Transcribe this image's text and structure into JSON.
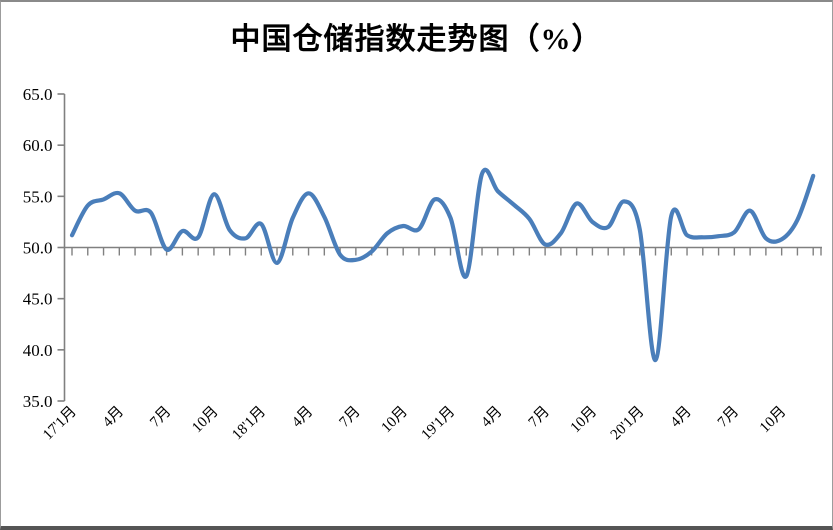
{
  "title": "中国仓储指数走势图（%）",
  "chart_data": {
    "type": "line",
    "title": "中国仓储指数走势图（%）",
    "categories": [
      "2017-01",
      "2017-02",
      "2017-03",
      "2017-04",
      "2017-05",
      "2017-06",
      "2017-07",
      "2017-08",
      "2017-09",
      "2017-10",
      "2017-11",
      "2017-12",
      "2018-01",
      "2018-02",
      "2018-03",
      "2018-04",
      "2018-05",
      "2018-06",
      "2018-07",
      "2018-08",
      "2018-09",
      "2018-10",
      "2018-11",
      "2018-12",
      "2019-01",
      "2019-02",
      "2019-03",
      "2019-04",
      "2019-05",
      "2019-06",
      "2019-07",
      "2019-08",
      "2019-09",
      "2019-10",
      "2019-11",
      "2019-12",
      "2020-01",
      "2020-02",
      "2020-03",
      "2020-04",
      "2020-05",
      "2020-06",
      "2020-07",
      "2020-08",
      "2020-09",
      "2020-10",
      "2020-11",
      "2020-12"
    ],
    "values": [
      51.2,
      54.1,
      54.7,
      55.3,
      53.6,
      53.4,
      49.8,
      51.6,
      51.0,
      55.2,
      51.7,
      50.9,
      52.3,
      48.5,
      52.9,
      55.3,
      53.0,
      49.3,
      48.8,
      49.6,
      51.4,
      52.1,
      51.8,
      54.7,
      52.9,
      47.2,
      57.2,
      55.5,
      54.2,
      52.8,
      50.3,
      51.4,
      54.3,
      52.5,
      52.0,
      54.5,
      51.8,
      39.0,
      53.1,
      51.2,
      51.0,
      51.1,
      51.5,
      53.6,
      50.9,
      50.8,
      52.7,
      57.0
    ],
    "x_tick_labels": [
      "17'1月",
      "4月",
      "7月",
      "10月",
      "18'1月",
      "4月",
      "7月",
      "10月",
      "19'1月",
      "4月",
      "7月",
      "10月",
      "20'1月",
      "4月",
      "7月",
      "10月"
    ],
    "x_tick_every": 3,
    "y_tick_labels": [
      "65.0",
      "60.0",
      "55.0",
      "50.0",
      "45.0",
      "40.0",
      "35.0"
    ],
    "ylim": [
      35,
      65
    ],
    "y_tick_step": 5,
    "axis_cross_value": 50,
    "grid": false,
    "legend_position": "none",
    "smooth": true,
    "line_color": "#4A7EBA",
    "axis_color": "#808080",
    "label_color": "#000000"
  }
}
